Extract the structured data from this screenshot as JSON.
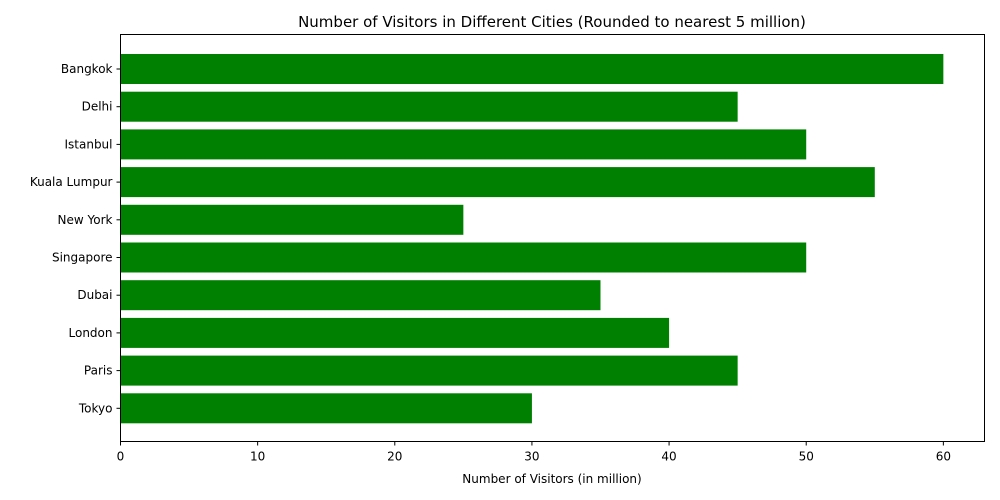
{
  "chart_data": {
    "type": "bar",
    "orientation": "horizontal",
    "title": "Number of Visitors in Different Cities (Rounded to nearest 5 million)",
    "xlabel": "Number of Visitors (in million)",
    "ylabel": "",
    "categories": [
      "Bangkok",
      "Delhi",
      "Istanbul",
      "Kuala Lumpur",
      "New York",
      "Singapore",
      "Dubai",
      "London",
      "Paris",
      "Tokyo"
    ],
    "values": [
      60,
      45,
      50,
      55,
      25,
      50,
      35,
      40,
      45,
      30
    ],
    "xlim": [
      0,
      63
    ],
    "xticks": [
      0,
      10,
      20,
      30,
      40,
      50,
      60
    ],
    "grid": false,
    "legend": "none",
    "bar_color": "#008000"
  }
}
